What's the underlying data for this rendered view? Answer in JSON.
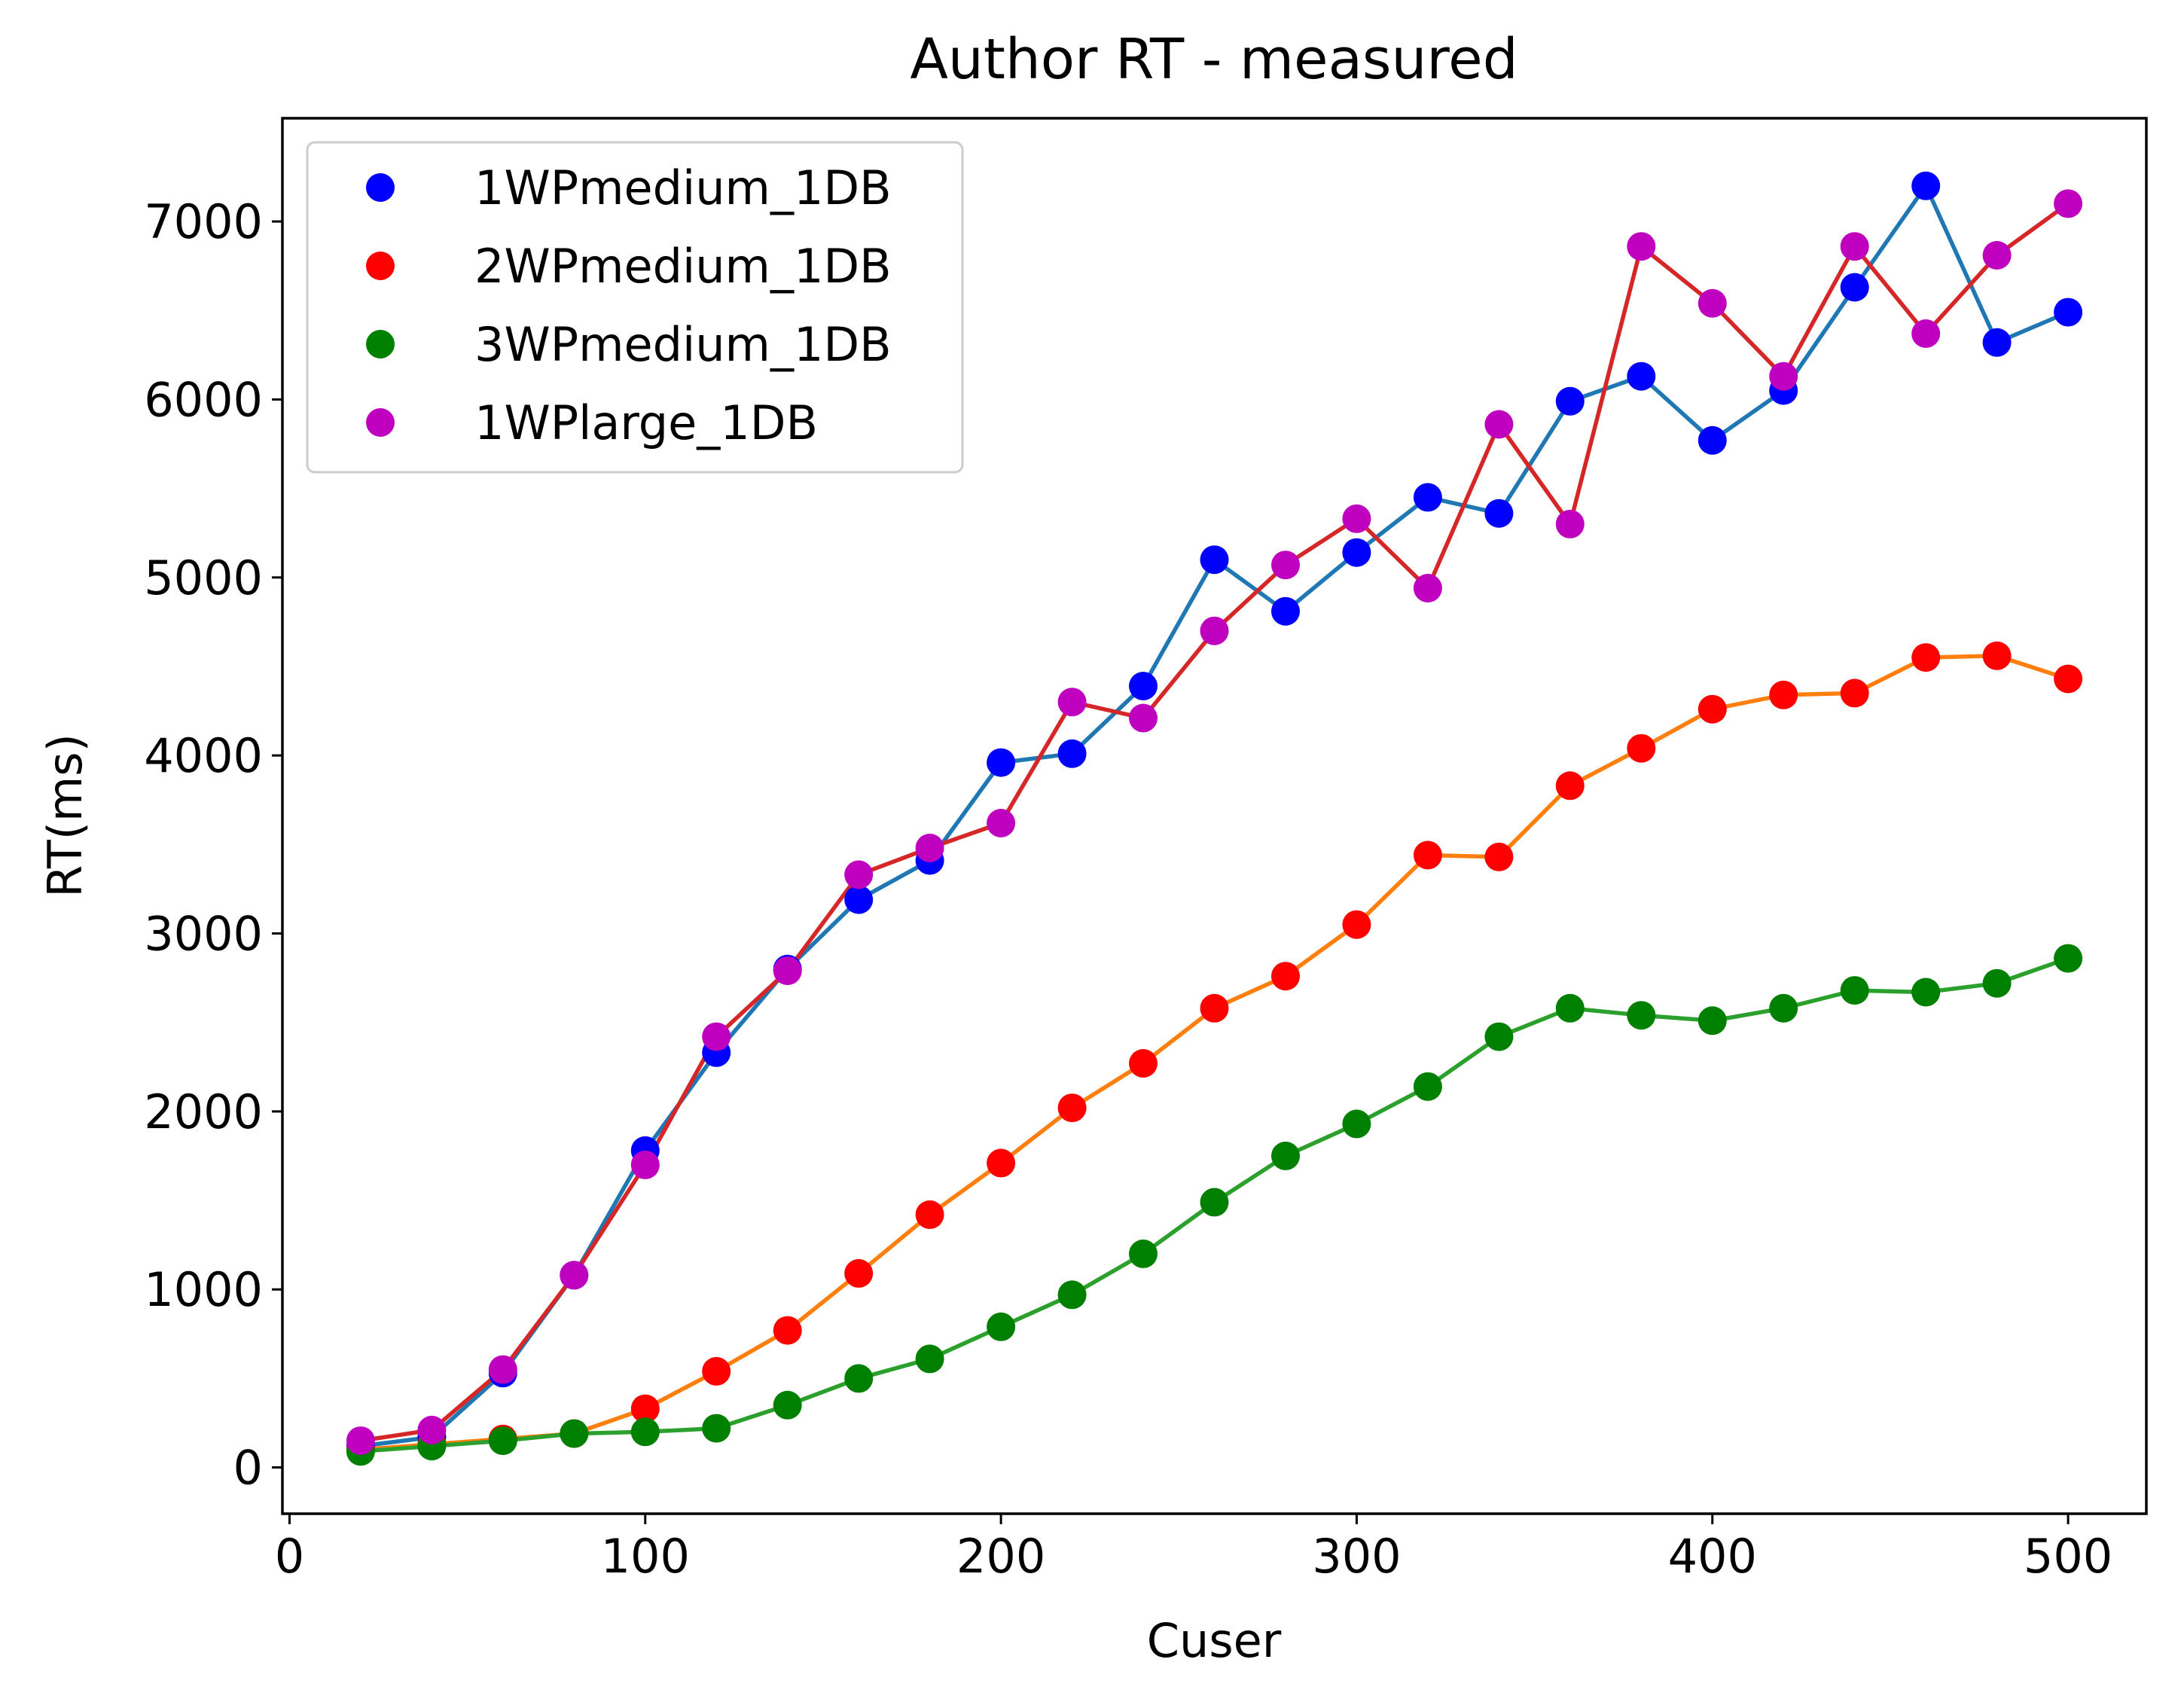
{
  "chart_data": {
    "type": "line",
    "title": "Author RT - measured",
    "xlabel": "Cuser",
    "ylabel": "RT(ms)",
    "xlim": [
      -2,
      522
    ],
    "ylim": [
      -260,
      7580
    ],
    "xticks": [
      0,
      100,
      200,
      300,
      400,
      500
    ],
    "yticks": [
      0,
      1000,
      2000,
      3000,
      4000,
      5000,
      6000,
      7000
    ],
    "grid": false,
    "legend_position": "top-left",
    "x": [
      20,
      40,
      60,
      80,
      100,
      120,
      140,
      160,
      180,
      200,
      220,
      240,
      260,
      280,
      300,
      320,
      340,
      360,
      380,
      400,
      420,
      440,
      460,
      480,
      500
    ],
    "series": [
      {
        "name": "1WPmedium_1DB",
        "marker_color": "#0000ff",
        "line_color": "#1f77b4",
        "values": [
          120,
          170,
          530,
          1080,
          1780,
          2330,
          2800,
          3190,
          3410,
          3960,
          4010,
          4390,
          5100,
          4810,
          5140,
          5450,
          5360,
          5990,
          6130,
          5770,
          6050,
          6630,
          7200,
          6320,
          6490
        ]
      },
      {
        "name": "2WPmedium_1DB",
        "marker_color": "#ff0000",
        "line_color": "#ff7f0e",
        "values": [
          100,
          130,
          160,
          190,
          330,
          540,
          770,
          1090,
          1420,
          1710,
          2020,
          2270,
          2580,
          2760,
          3050,
          3440,
          3430,
          3830,
          4040,
          4260,
          4340,
          4350,
          4550,
          4560,
          4430
        ]
      },
      {
        "name": "3WPmedium_1DB",
        "marker_color": "#008000",
        "line_color": "#2ca02c",
        "values": [
          90,
          120,
          150,
          190,
          200,
          220,
          350,
          500,
          610,
          790,
          970,
          1200,
          1490,
          1750,
          1930,
          2140,
          2420,
          2580,
          2540,
          2510,
          2580,
          2680,
          2670,
          2720,
          2860
        ]
      },
      {
        "name": "1WPlarge_1DB",
        "marker_color": "#bf00bf",
        "line_color": "#d62728",
        "values": [
          150,
          210,
          550,
          1080,
          1700,
          2420,
          2790,
          3330,
          3480,
          3620,
          4300,
          4210,
          4700,
          5070,
          5330,
          4940,
          5860,
          5300,
          6860,
          6540,
          6130,
          6860,
          6370,
          6810,
          7100
        ]
      }
    ]
  }
}
